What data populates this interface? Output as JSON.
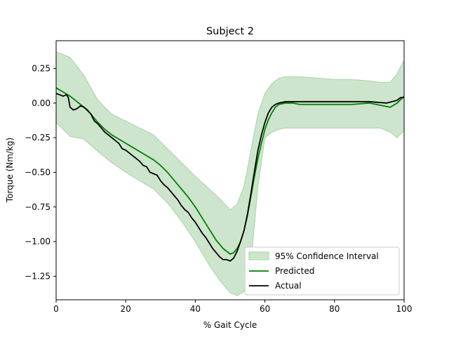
{
  "chart_data": {
    "type": "line",
    "title": "Subject 2",
    "xlabel": "% Gait Cycle",
    "ylabel": "Torque (Nm/kg)",
    "xlim": [
      0,
      100
    ],
    "ylim": [
      -1.42,
      0.45
    ],
    "xticks": [
      0,
      20,
      40,
      60,
      80,
      100
    ],
    "xtick_labels": [
      "0",
      "20",
      "40",
      "60",
      "80",
      "100"
    ],
    "yticks": [
      0.25,
      0,
      -0.25,
      -0.5,
      -0.75,
      -1.0,
      -1.25
    ],
    "ytick_labels": [
      "0.25",
      "0.00",
      "−0.25",
      "−0.50",
      "−0.75",
      "−1.00",
      "−1.25"
    ],
    "grid": false,
    "legend_position": "lower-right",
    "band": {
      "name": "95% Confidence Interval",
      "color": "#cde5cc",
      "edge_color": "#a8d3a6",
      "x": [
        0,
        4,
        8,
        12,
        16,
        20,
        24,
        28,
        32,
        36,
        40,
        44,
        47,
        50,
        52,
        54,
        56,
        58,
        60,
        62,
        64,
        66,
        70,
        75,
        80,
        85,
        90,
        93,
        96,
        98,
        100
      ],
      "upper": [
        0.37,
        0.33,
        0.2,
        0.02,
        -0.08,
        -0.13,
        -0.18,
        -0.23,
        -0.33,
        -0.43,
        -0.53,
        -0.62,
        -0.69,
        -0.77,
        -0.73,
        -0.6,
        -0.34,
        -0.08,
        0.07,
        0.14,
        0.18,
        0.19,
        0.19,
        0.18,
        0.17,
        0.17,
        0.16,
        0.15,
        0.15,
        0.21,
        0.31
      ],
      "lower": [
        -0.14,
        -0.24,
        -0.26,
        -0.35,
        -0.43,
        -0.5,
        -0.56,
        -0.62,
        -0.72,
        -0.85,
        -1.0,
        -1.17,
        -1.28,
        -1.37,
        -1.39,
        -1.36,
        -1.15,
        -0.6,
        -0.25,
        -0.21,
        -0.19,
        -0.18,
        -0.18,
        -0.18,
        -0.18,
        -0.18,
        -0.18,
        -0.18,
        -0.21,
        -0.25,
        -0.2
      ]
    },
    "series": [
      {
        "name": "Predicted",
        "color": "#008000",
        "x": [
          0,
          2,
          4,
          6,
          8,
          10,
          12,
          14,
          16,
          18,
          20,
          22,
          24,
          26,
          28,
          30,
          32,
          34,
          36,
          38,
          40,
          42,
          44,
          46,
          48,
          50,
          51,
          52,
          53,
          54,
          55,
          56,
          57,
          58,
          59,
          60,
          61,
          62,
          63,
          64,
          66,
          68,
          70,
          75,
          80,
          85,
          90,
          92,
          94,
          96,
          98,
          100
        ],
        "y": [
          0.11,
          0.08,
          0.05,
          0.01,
          -0.03,
          -0.08,
          -0.14,
          -0.19,
          -0.23,
          -0.26,
          -0.29,
          -0.32,
          -0.35,
          -0.38,
          -0.41,
          -0.45,
          -0.5,
          -0.56,
          -0.62,
          -0.68,
          -0.75,
          -0.83,
          -0.91,
          -0.99,
          -1.05,
          -1.09,
          -1.08,
          -1.05,
          -1.0,
          -0.92,
          -0.81,
          -0.67,
          -0.53,
          -0.4,
          -0.29,
          -0.19,
          -0.12,
          -0.07,
          -0.03,
          -0.01,
          0.0,
          0.0,
          -0.01,
          -0.01,
          -0.01,
          -0.01,
          0.0,
          -0.01,
          -0.02,
          -0.03,
          0.0,
          0.05
        ]
      },
      {
        "name": "Actual",
        "color": "#000000",
        "x": [
          0,
          1,
          2,
          3,
          3.5,
          4,
          5,
          6,
          7,
          8,
          9,
          10,
          11,
          12,
          13,
          14,
          15,
          16,
          17,
          18,
          19,
          20,
          21,
          22,
          23,
          24,
          25,
          26,
          27,
          28,
          29,
          30,
          31,
          32,
          33,
          34,
          35,
          36,
          37,
          38,
          39,
          40,
          41,
          42,
          43,
          44,
          45,
          46,
          47,
          48,
          49,
          50,
          51,
          52,
          53,
          54,
          55,
          56,
          57,
          58,
          59,
          60,
          61,
          62,
          63,
          64,
          66,
          68,
          70,
          75,
          80,
          85,
          90,
          95,
          98,
          99,
          100
        ],
        "y": [
          0.07,
          0.06,
          0.05,
          0.06,
          0.04,
          -0.03,
          -0.05,
          -0.04,
          -0.02,
          -0.03,
          -0.05,
          -0.08,
          -0.13,
          -0.15,
          -0.18,
          -0.21,
          -0.23,
          -0.25,
          -0.27,
          -0.29,
          -0.33,
          -0.34,
          -0.36,
          -0.38,
          -0.4,
          -0.42,
          -0.45,
          -0.46,
          -0.5,
          -0.51,
          -0.52,
          -0.56,
          -0.59,
          -0.61,
          -0.64,
          -0.67,
          -0.7,
          -0.74,
          -0.77,
          -0.79,
          -0.83,
          -0.86,
          -0.9,
          -0.94,
          -0.97,
          -1.01,
          -1.05,
          -1.08,
          -1.11,
          -1.13,
          -1.13,
          -1.14,
          -1.12,
          -1.07,
          -1.0,
          -0.92,
          -0.8,
          -0.65,
          -0.49,
          -0.34,
          -0.23,
          -0.14,
          -0.07,
          -0.03,
          -0.01,
          0.0,
          0.01,
          0.01,
          0.01,
          0.01,
          0.01,
          0.01,
          0.01,
          0.0,
          0.02,
          0.04,
          0.04
        ]
      }
    ]
  }
}
